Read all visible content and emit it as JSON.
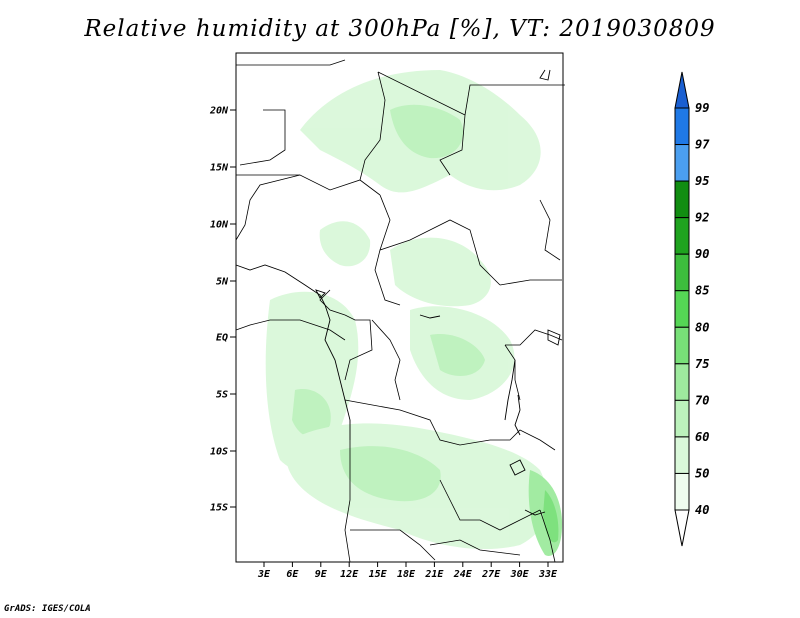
{
  "title": "Relative humidity at 300hPa [%], VT: 2019030809",
  "credit": "GrADS: IGES/COLA",
  "lat_labels": [
    "20N",
    "15N",
    "10N",
    "5N",
    "EQ",
    "5S",
    "10S",
    "15S"
  ],
  "lon_labels": [
    "3E",
    "6E",
    "9E",
    "12E",
    "15E",
    "18E",
    "21E",
    "24E",
    "27E",
    "30E",
    "33E"
  ],
  "colorbar": {
    "levels": [
      "99",
      "97",
      "95",
      "92",
      "90",
      "85",
      "80",
      "75",
      "70",
      "60",
      "50",
      "40"
    ],
    "colors": [
      "#1a5fd1",
      "#1f79e6",
      "#4b9ff0",
      "#118d11",
      "#1fa31f",
      "#3dbd3d",
      "#55d655",
      "#78e078",
      "#9eea9e",
      "#bcf2bc",
      "#daf8da",
      "#effcef",
      "#ffffff"
    ]
  },
  "field_colors": {
    "light": "#daf8da",
    "mid": "#bcf2bc",
    "strong": "#9eea9e",
    "darker": "#78e078"
  }
}
